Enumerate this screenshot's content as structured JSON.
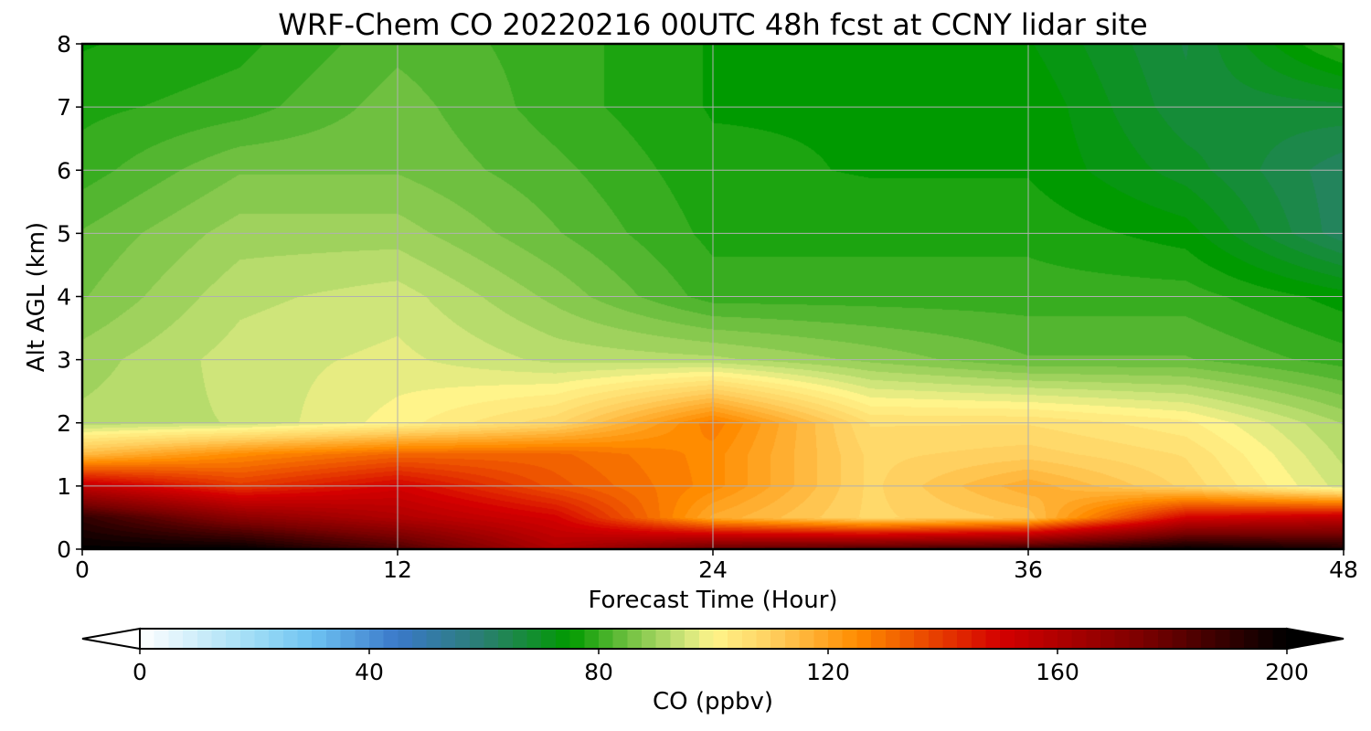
{
  "chart_data": {
    "type": "heatmap",
    "title": "WRF-Chem CO  20220216 00UTC 48h fcst at CCNY lidar site",
    "xlabel": "Forecast Time (Hour)",
    "ylabel": "Alt AGL (km)",
    "xlim": [
      0,
      48
    ],
    "ylim": [
      0,
      8
    ],
    "x_ticks": [
      0,
      12,
      24,
      36,
      48
    ],
    "y_ticks": [
      0,
      1,
      2,
      3,
      4,
      5,
      6,
      7,
      8
    ],
    "grid": true,
    "x": [
      0,
      6,
      12,
      18,
      24,
      30,
      36,
      42,
      48
    ],
    "y": [
      0,
      0.5,
      1,
      1.5,
      2,
      3,
      4,
      5,
      6,
      7,
      8
    ],
    "z": [
      [
        200,
        200,
        185,
        160,
        180,
        185,
        190,
        200,
        195
      ],
      [
        190,
        170,
        160,
        150,
        118,
        108,
        112,
        150,
        155
      ],
      [
        155,
        140,
        150,
        135,
        125,
        108,
        118,
        108,
        95
      ],
      [
        115,
        125,
        132,
        132,
        125,
        108,
        110,
        106,
        93
      ],
      [
        92,
        94,
        100,
        108,
        128,
        106,
        106,
        102,
        91
      ],
      [
        90,
        95,
        97,
        93,
        92,
        88,
        84,
        84,
        80
      ],
      [
        86,
        93,
        95,
        88,
        80,
        80,
        80,
        80,
        75
      ],
      [
        84,
        90,
        90,
        84,
        78,
        78,
        78,
        75,
        62
      ],
      [
        80,
        86,
        86,
        82,
        77,
        76,
        76,
        70,
        62
      ],
      [
        78,
        80,
        85,
        80,
        76,
        76,
        76,
        67,
        68
      ],
      [
        76,
        78,
        83,
        80,
        76,
        76,
        74,
        66,
        80
      ]
    ],
    "colorbar": {
      "label": "CO  (ppbv)",
      "min": 0,
      "max": 200,
      "ticks": [
        0,
        40,
        80,
        120,
        160,
        200
      ],
      "extend": "both",
      "orientation": "horizontal"
    },
    "colorscale": [
      [
        0,
        "#ffffff"
      ],
      [
        20,
        "#9edcf5"
      ],
      [
        30,
        "#6ec3f2"
      ],
      [
        45,
        "#3a78c9"
      ],
      [
        60,
        "#2a7f6f"
      ],
      [
        75,
        "#009a00"
      ],
      [
        85,
        "#6fc040"
      ],
      [
        95,
        "#cfe57a"
      ],
      [
        100,
        "#fff48a"
      ],
      [
        110,
        "#ffd060"
      ],
      [
        125,
        "#ff8c00"
      ],
      [
        150,
        "#d40000"
      ],
      [
        175,
        "#7a0000"
      ],
      [
        200,
        "#000000"
      ]
    ]
  }
}
